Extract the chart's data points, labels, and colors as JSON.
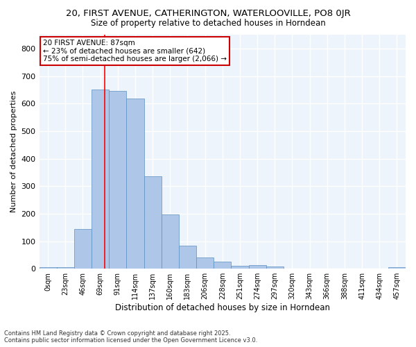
{
  "title_line1": "20, FIRST AVENUE, CATHERINGTON, WATERLOOVILLE, PO8 0JR",
  "title_line2": "Size of property relative to detached houses in Horndean",
  "xlabel": "Distribution of detached houses by size in Horndean",
  "ylabel": "Number of detached properties",
  "bin_labels": [
    "0sqm",
    "23sqm",
    "46sqm",
    "69sqm",
    "91sqm",
    "114sqm",
    "137sqm",
    "160sqm",
    "183sqm",
    "206sqm",
    "228sqm",
    "251sqm",
    "274sqm",
    "297sqm",
    "320sqm",
    "343sqm",
    "366sqm",
    "388sqm",
    "411sqm",
    "434sqm",
    "457sqm"
  ],
  "bar_values": [
    5,
    5,
    143,
    650,
    645,
    617,
    335,
    198,
    83,
    41,
    26,
    11,
    12,
    8,
    0,
    0,
    0,
    0,
    0,
    0,
    5
  ],
  "bar_color": "#AEC6E8",
  "bar_edge_color": "#5A8FC0",
  "background_color": "#EEF4FB",
  "grid_color": "#FFFFFF",
  "red_line_x": 3.74,
  "annotation_text": "20 FIRST AVENUE: 87sqm\n← 23% of detached houses are smaller (642)\n75% of semi-detached houses are larger (2,066) →",
  "annotation_box_color": "#FFFFFF",
  "annotation_box_edge": "#CC0000",
  "footer_line1": "Contains HM Land Registry data © Crown copyright and database right 2025.",
  "footer_line2": "Contains public sector information licensed under the Open Government Licence v3.0.",
  "ylim": [
    0,
    850
  ],
  "yticks": [
    0,
    100,
    200,
    300,
    400,
    500,
    600,
    700,
    800
  ]
}
